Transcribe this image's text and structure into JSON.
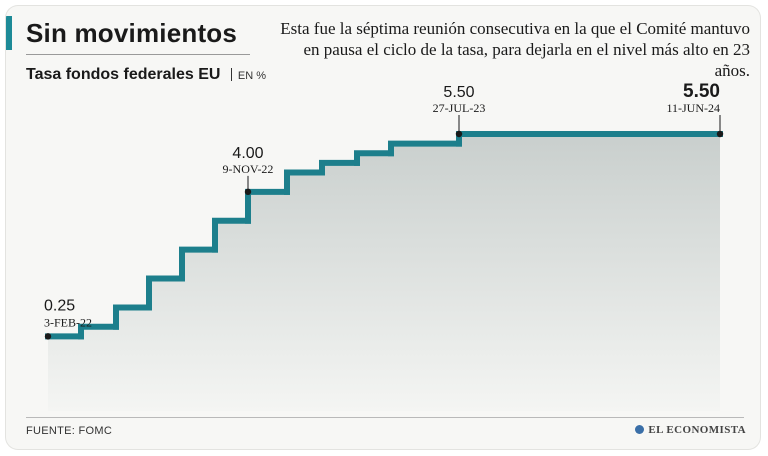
{
  "header": {
    "title": "Sin movimientos",
    "description": "Esta fue la séptima reunión consecutiva en la que el Comité mantuvo en pausa el ciclo de la tasa, para dejarla en el nivel más alto en 23 años."
  },
  "chart_data": {
    "type": "line",
    "step": true,
    "title": "Tasa fondos federales EU",
    "unit": "EN %",
    "ylim": [
      0,
      5.5
    ],
    "series": [
      {
        "name": "Tasa fondos federales EU",
        "color": "#1d7f8c",
        "values": [
          0.25,
          0.5,
          1.0,
          1.75,
          2.5,
          3.25,
          4.0,
          4.5,
          4.75,
          5.0,
          5.25,
          5.5
        ]
      }
    ],
    "annotations": [
      {
        "index": 0,
        "value": "0.25",
        "date": "3-FEB-22",
        "emphasis": false
      },
      {
        "index": 6,
        "value": "4.00",
        "date": "9-NOV-22",
        "emphasis": false
      },
      {
        "index": 11,
        "value": "5.50",
        "date": "27-JUL-23",
        "emphasis": false
      },
      {
        "index": 12,
        "value": "5.50",
        "date": "11-JUN-24",
        "emphasis": true
      }
    ],
    "colors": {
      "line": "#1d7f8c",
      "accent": "#1d8a97",
      "area_top": "#c9cfcd",
      "area_bottom": "#f4f5f3"
    }
  },
  "footer": {
    "source": "FUENTE: FOMC",
    "brand": "EL ECONOMISTA"
  }
}
